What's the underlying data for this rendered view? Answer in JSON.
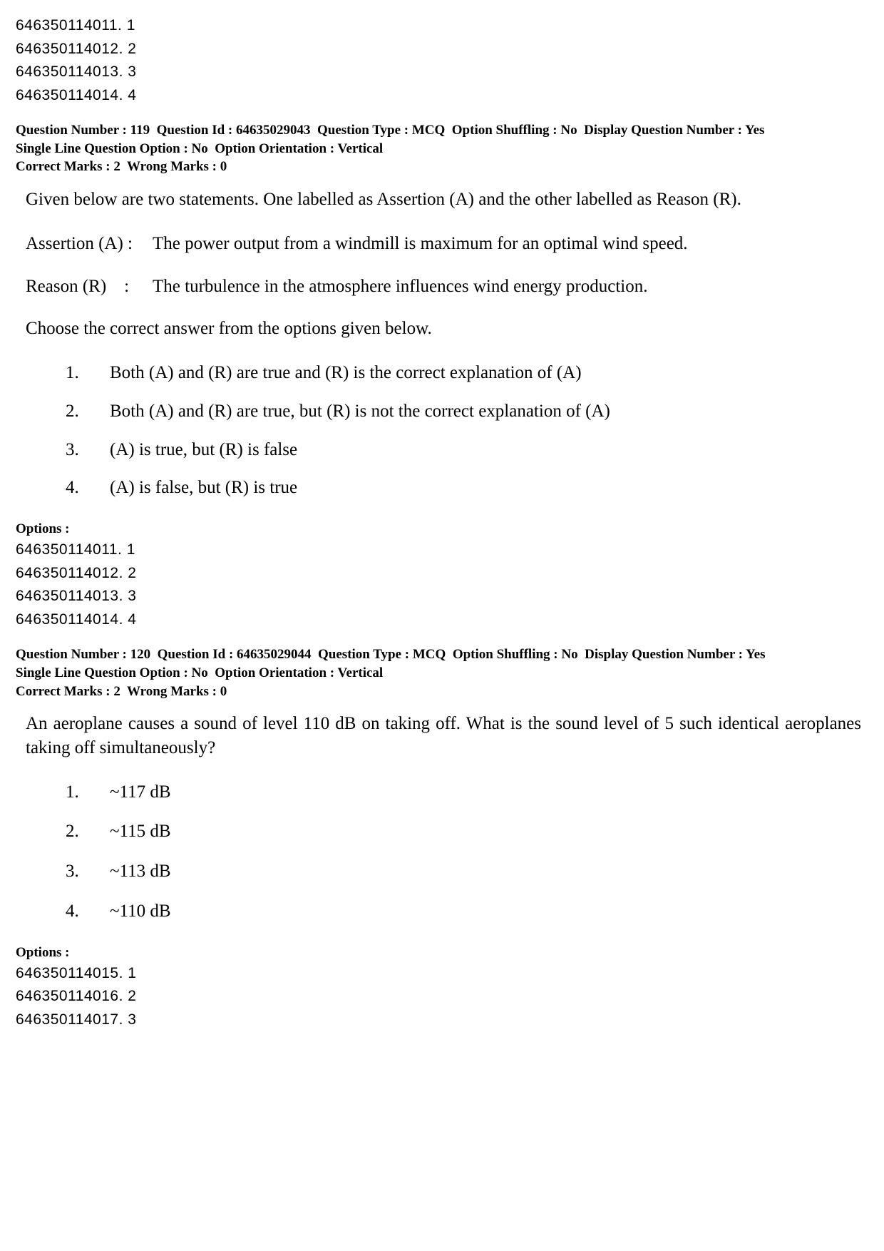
{
  "top_options": [
    {
      "id": "646350114011",
      "label": "1"
    },
    {
      "id": "646350114012",
      "label": "2"
    },
    {
      "id": "646350114013",
      "label": "3"
    },
    {
      "id": "646350114014",
      "label": "4"
    }
  ],
  "q119": {
    "meta": {
      "question_number_label": "Question Number :",
      "question_number": "119",
      "question_id_label": "Question Id :",
      "question_id": "64635029043",
      "question_type_label": "Question Type :",
      "question_type": "MCQ",
      "option_shuffling_label": "Option Shuffling :",
      "option_shuffling": "No",
      "display_qn_label": "Display Question Number :",
      "display_qn": "Yes",
      "single_line_label": "Single Line Question Option :",
      "single_line": "No",
      "orientation_label": "Option Orientation :",
      "orientation": "Vertical",
      "correct_marks_label": "Correct Marks :",
      "correct_marks": "2",
      "wrong_marks_label": "Wrong Marks :",
      "wrong_marks": "0"
    },
    "intro": "Given below are two statements. One labelled as Assertion (A) and the other labelled as Reason (R).",
    "assertion_label": "Assertion (A)  :",
    "assertion_text": "The power output from a windmill is maximum for an optimal wind speed.",
    "reason_label": "Reason (R)",
    "reason_colon": ":",
    "reason_text": "The turbulence in the atmosphere influences wind energy production.",
    "choose": "Choose the correct answer from the options given below.",
    "answers": [
      {
        "n": "1.",
        "t": "Both (A) and (R) are true and (R) is the correct explanation of (A)"
      },
      {
        "n": "2.",
        "t": "Both (A) and (R) are true, but (R) is not the correct explanation of (A)"
      },
      {
        "n": "3.",
        "t": "(A) is true, but (R) is false"
      },
      {
        "n": "4.",
        "t": "(A) is false, but (R) is true"
      }
    ],
    "options_label": "Options :",
    "options": [
      {
        "id": "646350114011",
        "label": "1"
      },
      {
        "id": "646350114012",
        "label": "2"
      },
      {
        "id": "646350114013",
        "label": "3"
      },
      {
        "id": "646350114014",
        "label": "4"
      }
    ]
  },
  "q120": {
    "meta": {
      "question_number_label": "Question Number :",
      "question_number": "120",
      "question_id_label": "Question Id :",
      "question_id": "64635029044",
      "question_type_label": "Question Type :",
      "question_type": "MCQ",
      "option_shuffling_label": "Option Shuffling :",
      "option_shuffling": "No",
      "display_qn_label": "Display Question Number :",
      "display_qn": "Yes",
      "single_line_label": "Single Line Question Option :",
      "single_line": "No",
      "orientation_label": "Option Orientation :",
      "orientation": "Vertical",
      "correct_marks_label": "Correct Marks :",
      "correct_marks": "2",
      "wrong_marks_label": "Wrong Marks :",
      "wrong_marks": "0"
    },
    "text": "An aeroplane causes a sound of level 110 dB on taking off. What is the sound level of 5 such identical aeroplanes taking off simultaneously?",
    "answers": [
      {
        "n": "1.",
        "t": "~117 dB"
      },
      {
        "n": "2.",
        "t": "~115 dB"
      },
      {
        "n": "3.",
        "t": "~113 dB"
      },
      {
        "n": "4.",
        "t": "~110 dB"
      }
    ],
    "options_label": "Options :",
    "options": [
      {
        "id": "646350114015",
        "label": "1"
      },
      {
        "id": "646350114016",
        "label": "2"
      },
      {
        "id": "646350114017",
        "label": "3"
      }
    ]
  }
}
